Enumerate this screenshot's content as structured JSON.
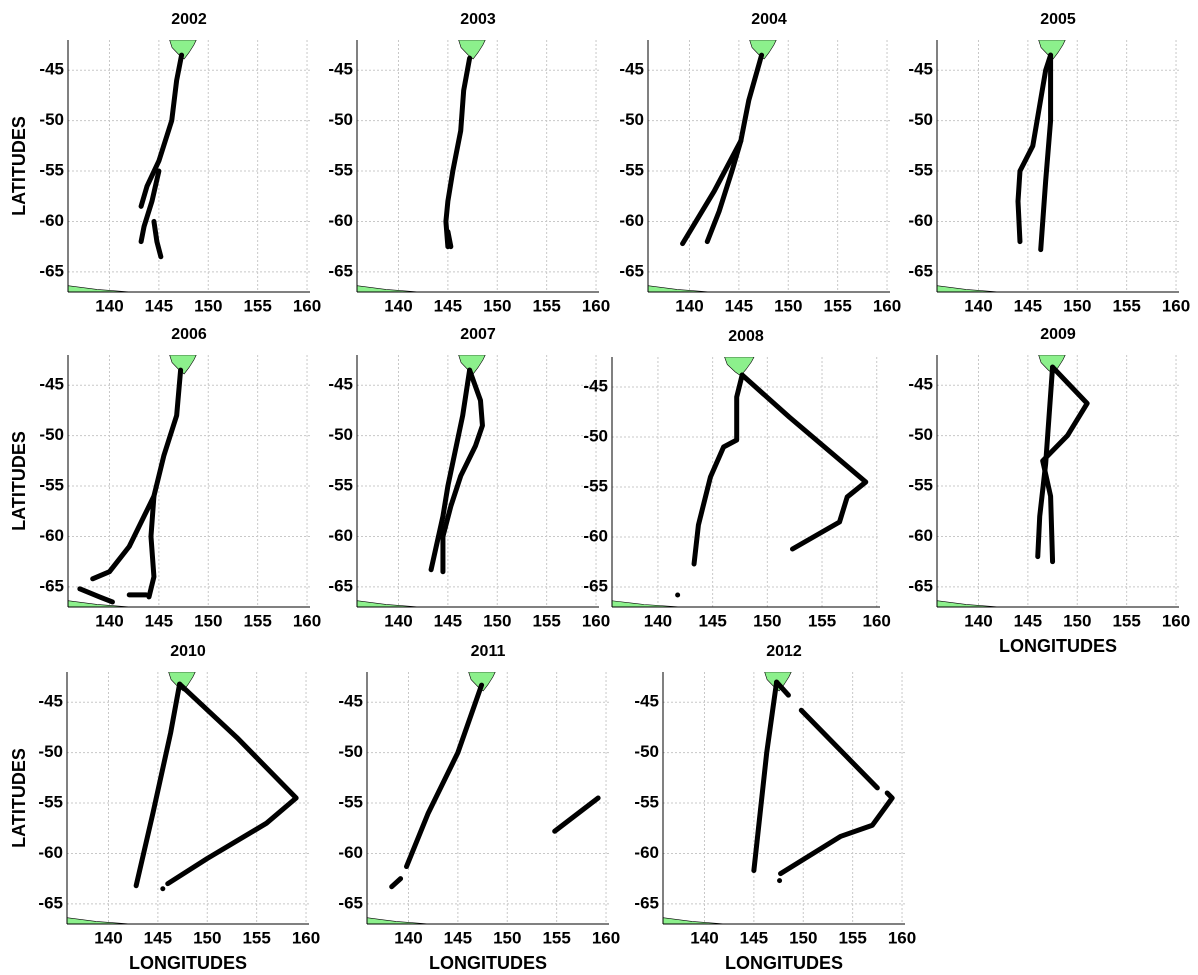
{
  "chart_data": [
    {
      "type": "line",
      "title": "2002",
      "ylabel": "LATITUDES",
      "color": "#000000",
      "grid": true,
      "xlim": [
        135.8,
        160.3
      ],
      "ylim": [
        -67,
        -42
      ],
      "xticks": [
        140,
        145,
        150,
        155,
        160
      ],
      "yticks": [
        -45,
        -50,
        -55,
        -60,
        -65
      ],
      "x": [
        147.3,
        146.8,
        146.3,
        145.0,
        143.8,
        143.2,
        null,
        145.0,
        144.3,
        143.5,
        143.2,
        null,
        144.5,
        144.8,
        145.2
      ],
      "values": [
        -43.5,
        -46,
        -50,
        -54,
        -56.5,
        -58.5,
        null,
        -55,
        -58,
        -60.5,
        -62,
        null,
        -60,
        -62,
        -63.5
      ]
    },
    {
      "type": "line",
      "title": "2003",
      "color": "#000000",
      "grid": true,
      "xlim": [
        135.8,
        160.3
      ],
      "ylim": [
        -67,
        -42
      ],
      "xticks": [
        140,
        145,
        150,
        155,
        160
      ],
      "yticks": [
        -45,
        -50,
        -55,
        -60,
        -65
      ],
      "x": [
        147.2,
        146.6,
        146.3,
        145.5,
        145.0,
        144.8,
        145.0,
        null,
        145.0,
        145.3
      ],
      "values": [
        -43.8,
        -47,
        -51,
        -55,
        -58,
        -60,
        -62.5,
        null,
        -61,
        -62.5
      ]
    },
    {
      "type": "line",
      "title": "2004",
      "color": "#000000",
      "grid": true,
      "xlim": [
        135.8,
        160.3
      ],
      "ylim": [
        -67,
        -42
      ],
      "xticks": [
        140,
        145,
        150,
        155,
        160
      ],
      "yticks": [
        -45,
        -50,
        -55,
        -60,
        -65
      ],
      "x": [
        147.3,
        146.0,
        145.2,
        142.5,
        139.3,
        null,
        145.2,
        144.3,
        143.0,
        141.8
      ],
      "values": [
        -43.5,
        -48,
        -52,
        -57,
        -62.2,
        null,
        -52,
        -55,
        -59,
        -62
      ]
    },
    {
      "type": "line",
      "title": "2005",
      "color": "#000000",
      "grid": true,
      "xlim": [
        135.8,
        160.3
      ],
      "ylim": [
        -67,
        -42
      ],
      "xticks": [
        140,
        145,
        150,
        155,
        160
      ],
      "yticks": [
        -45,
        -50,
        -55,
        -60,
        -65
      ],
      "x": [
        147.3,
        146.8,
        145.5,
        144.2,
        144.0,
        144.2,
        null,
        147.3,
        147.3,
        146.8,
        146.3
      ],
      "values": [
        -43.5,
        -45,
        -52.5,
        -55,
        -58,
        -62,
        null,
        -43.5,
        -50,
        -56,
        -62.8
      ]
    },
    {
      "type": "line",
      "title": "2006",
      "ylabel": "LATITUDES",
      "color": "#000000",
      "grid": true,
      "xlim": [
        135.8,
        160.3
      ],
      "ylim": [
        -67,
        -42
      ],
      "xticks": [
        140,
        145,
        150,
        155,
        160
      ],
      "yticks": [
        -45,
        -50,
        -55,
        -60,
        -65
      ],
      "x": [
        147.2,
        146.8,
        145.5,
        144.5,
        144.2,
        144.5,
        144.0,
        null,
        144.5,
        143.5,
        142.0,
        140.0,
        138.3,
        null,
        137.0,
        139.0,
        140.3,
        null,
        142.0,
        143.7
      ],
      "values": [
        -43.5,
        -48,
        -52,
        -56,
        -60,
        -64,
        -66,
        null,
        -56,
        -58,
        -61,
        -63.5,
        -64.2,
        null,
        -65.2,
        -66,
        -66.5,
        null,
        -65.8,
        -65.8
      ]
    },
    {
      "type": "line",
      "title": "2007",
      "color": "#000000",
      "grid": true,
      "xlim": [
        135.8,
        160.3
      ],
      "ylim": [
        -67,
        -42
      ],
      "xticks": [
        140,
        145,
        150,
        155,
        160
      ],
      "yticks": [
        -45,
        -50,
        -55,
        -60,
        -65
      ],
      "x": [
        147.2,
        146.5,
        145.0,
        144.5,
        143.3,
        null,
        147.2,
        148.3,
        148.5,
        147.8,
        146.3,
        145.3,
        144.5,
        144.5
      ],
      "values": [
        -43.5,
        -48,
        -55,
        -58,
        -63.3,
        null,
        -43.5,
        -46.5,
        -49,
        -51,
        -54,
        -57,
        -60,
        -63.5
      ]
    },
    {
      "type": "line",
      "title": "2008",
      "color": "#000000",
      "grid": true,
      "xlim": [
        135.8,
        160.3
      ],
      "ylim": [
        -67,
        -42
      ],
      "xticks": [
        140,
        145,
        150,
        155,
        160
      ],
      "yticks": [
        -45,
        -50,
        -55,
        -60,
        -65
      ],
      "x": [
        147.7,
        147.2,
        147.2,
        146.0,
        144.8,
        143.7,
        143.3,
        null,
        147.7,
        152.0,
        159.0,
        157.3,
        156.6,
        152.3,
        null,
        141.8
      ],
      "values": [
        -43.8,
        -46,
        -50.3,
        -51,
        -54,
        -58.8,
        -62.7,
        null,
        -43.8,
        -48,
        -54.5,
        -56,
        -58.5,
        -61.2,
        null,
        -65.8
      ]
    },
    {
      "type": "line",
      "title": "2009",
      "xlabel": "LONGITUDES",
      "color": "#000000",
      "grid": true,
      "xlim": [
        135.8,
        160.3
      ],
      "ylim": [
        -67,
        -42
      ],
      "xticks": [
        140,
        145,
        150,
        155,
        160
      ],
      "yticks": [
        -45,
        -50,
        -55,
        -60,
        -65
      ],
      "x": [
        147.5,
        151.0,
        149.0,
        146.5,
        147.3,
        147.5,
        null,
        147.5,
        146.8,
        146.2,
        146.0
      ],
      "values": [
        -43.2,
        -46.8,
        -50,
        -52.5,
        -56,
        -62.5,
        null,
        -43.2,
        -52.8,
        -58,
        -62
      ]
    },
    {
      "type": "line",
      "title": "2010",
      "ylabel": "LATITUDES",
      "xlabel": "LONGITUDES",
      "color": "#000000",
      "grid": true,
      "xlim": [
        135.8,
        160.3
      ],
      "ylim": [
        -67,
        -42
      ],
      "xticks": [
        140,
        145,
        150,
        155,
        160
      ],
      "yticks": [
        -45,
        -50,
        -55,
        -60,
        -65
      ],
      "x": [
        147.2,
        146.3,
        144.5,
        142.8,
        null,
        147.2,
        153.0,
        159.0,
        156.0,
        150.0,
        146.0,
        null,
        145.5
      ],
      "values": [
        -43.2,
        -48,
        -56,
        -63.2,
        null,
        -43.2,
        -48.5,
        -54.5,
        -57,
        -60.5,
        -63,
        null,
        -63.5
      ]
    },
    {
      "type": "line",
      "title": "2011",
      "xlabel": "LONGITUDES",
      "color": "#000000",
      "grid": true,
      "xlim": [
        135.8,
        160.3
      ],
      "ylim": [
        -67,
        -42
      ],
      "xticks": [
        140,
        145,
        150,
        155,
        160
      ],
      "yticks": [
        -45,
        -50,
        -55,
        -60,
        -65
      ],
      "x": [
        147.4,
        145.0,
        142.0,
        139.8,
        null,
        139.2,
        138.3,
        null,
        154.8,
        159.2
      ],
      "values": [
        -43.3,
        -50,
        -56,
        -61.3,
        null,
        -62.5,
        -63.3,
        null,
        -57.8,
        -54.5
      ]
    },
    {
      "type": "line",
      "title": "2012",
      "xlabel": "LONGITUDES",
      "color": "#000000",
      "grid": true,
      "xlim": [
        135.8,
        160.3
      ],
      "ylim": [
        -67,
        -42
      ],
      "xticks": [
        140,
        145,
        150,
        155,
        160
      ],
      "yticks": [
        -45,
        -50,
        -55,
        -60,
        -65
      ],
      "x": [
        147.3,
        146.3,
        145.0,
        null,
        147.3,
        148.5,
        null,
        149.8,
        157.5,
        null,
        158.5,
        159.0,
        157.0,
        153.8,
        147.7,
        null,
        147.6
      ],
      "values": [
        -43,
        -50,
        -61.7,
        null,
        -43,
        -44.3,
        null,
        -45.8,
        -53.5,
        null,
        -54,
        -54.5,
        -57.2,
        -58.3,
        -62,
        null,
        -62.7
      ]
    }
  ]
}
